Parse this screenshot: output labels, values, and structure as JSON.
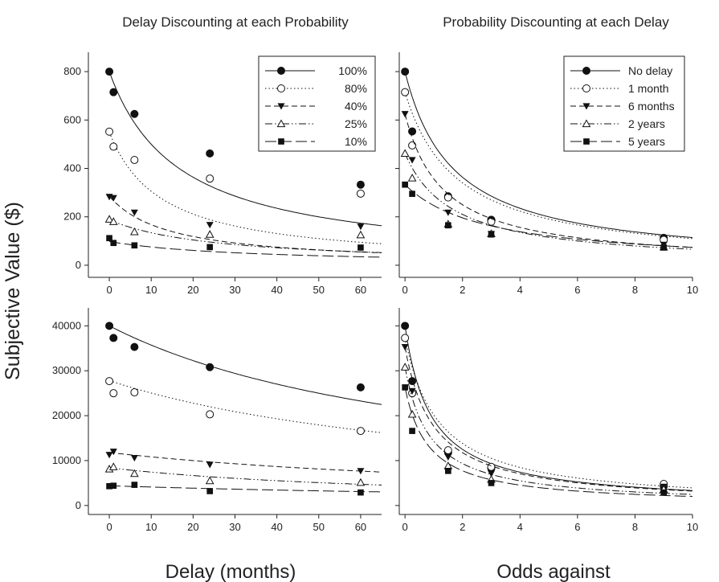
{
  "figure": {
    "left_title": "Delay Discounting at each Probability",
    "right_title": "Probability Discounting at each Delay",
    "ylabel": "Subjective Value ($)",
    "left_xlabel": "Delay (months)",
    "right_xlabel": "Odds against"
  },
  "chart_data": [
    {
      "type": "scatter",
      "panel": "top-left",
      "xlim": [
        -5,
        65
      ],
      "ylim": [
        -50,
        880
      ],
      "xticks": [
        "0",
        "10",
        "20",
        "30",
        "40",
        "50",
        "60"
      ],
      "yticks": [
        "0",
        "200",
        "400",
        "600",
        "800"
      ],
      "legend_position": "top-right",
      "series": [
        {
          "name": "100%",
          "marker": "filled-circle",
          "line": "solid",
          "x": [
            0,
            1,
            6,
            24,
            60
          ],
          "y": [
            800,
            715,
            625,
            462,
            333
          ],
          "fit": {
            "A": 800,
            "k": 0.06
          }
        },
        {
          "name": "80%",
          "marker": "open-circle",
          "line": "dotted",
          "x": [
            0,
            1,
            6,
            24,
            60
          ],
          "y": [
            552,
            490,
            435,
            358,
            296
          ],
          "fit": {
            "A": 550,
            "k": 0.08
          }
        },
        {
          "name": "40%",
          "marker": "filled-triangle-down",
          "line": "short-dash",
          "x": [
            0,
            1,
            6,
            24,
            60
          ],
          "y": [
            283,
            278,
            218,
            167,
            160
          ],
          "fit": {
            "A": 285,
            "k": 0.07
          }
        },
        {
          "name": "25%",
          "marker": "open-triangle-up",
          "line": "dash-dot-dot",
          "x": [
            0,
            1,
            6,
            24,
            60
          ],
          "y": [
            190,
            180,
            138,
            127,
            125
          ],
          "fit": {
            "A": 188,
            "k": 0.04
          }
        },
        {
          "name": "10%",
          "marker": "filled-square",
          "line": "long-dash",
          "x": [
            0,
            1,
            6,
            24,
            60
          ],
          "y": [
            112,
            92,
            82,
            75,
            73
          ],
          "fit": {
            "A": 98,
            "k": 0.03
          }
        }
      ]
    },
    {
      "type": "scatter",
      "panel": "top-right",
      "xlim": [
        -0.2,
        10
      ],
      "ylim": [
        -50,
        880
      ],
      "xticks": [
        "0",
        "2",
        "4",
        "6",
        "8",
        "10"
      ],
      "yticks": [
        "0",
        "200",
        "400",
        "600",
        "800"
      ],
      "legend_position": "top-right",
      "series": [
        {
          "name": "No delay",
          "marker": "filled-circle",
          "line": "solid",
          "x": [
            0,
            0.25,
            1.5,
            3,
            9
          ],
          "y": [
            800,
            553,
            285,
            188,
            113
          ],
          "fit": {
            "A": 800,
            "h": 0.6
          }
        },
        {
          "name": "1 month",
          "marker": "open-circle",
          "line": "dotted",
          "x": [
            0,
            0.25,
            1.5,
            3,
            9
          ],
          "y": [
            715,
            495,
            280,
            180,
            105
          ],
          "fit": {
            "A": 715,
            "h": 0.55
          }
        },
        {
          "name": "6 months",
          "marker": "filled-triangle-down",
          "line": "short-dash",
          "x": [
            0,
            0.25,
            1.5,
            3,
            9
          ],
          "y": [
            625,
            435,
            218,
            130,
            85
          ],
          "fit": {
            "A": 625,
            "h": 0.75
          }
        },
        {
          "name": "2 years",
          "marker": "open-triangle-up",
          "line": "dash-dot-dot",
          "x": [
            0,
            0.25,
            1.5,
            3,
            9
          ],
          "y": [
            462,
            360,
            170,
            130,
            75
          ],
          "fit": {
            "A": 462,
            "h": 0.6
          }
        },
        {
          "name": "5 years",
          "marker": "filled-square",
          "line": "long-dash",
          "x": [
            0,
            0.25,
            1.5,
            3,
            9
          ],
          "y": [
            333,
            295,
            165,
            127,
            73
          ],
          "fit": {
            "A": 333,
            "h": 0.35
          }
        }
      ]
    },
    {
      "type": "scatter",
      "panel": "bottom-left",
      "xlim": [
        -5,
        65
      ],
      "ylim": [
        -2000,
        44000
      ],
      "xticks": [
        "0",
        "10",
        "20",
        "30",
        "40",
        "50",
        "60"
      ],
      "yticks": [
        "0",
        "10000",
        "20000",
        "30000",
        "40000"
      ],
      "series": [
        {
          "name": "100%",
          "marker": "filled-circle",
          "line": "solid",
          "x": [
            0,
            1,
            6,
            24,
            60
          ],
          "y": [
            40000,
            37300,
            35300,
            30800,
            26300
          ],
          "fit": {
            "A": 40000,
            "k": 0.012
          }
        },
        {
          "name": "80%",
          "marker": "open-circle",
          "line": "dotted",
          "x": [
            0,
            1,
            6,
            24,
            60
          ],
          "y": [
            27700,
            25000,
            25200,
            20300,
            16600
          ],
          "fit": {
            "A": 27800,
            "k": 0.011
          }
        },
        {
          "name": "40%",
          "marker": "filled-triangle-down",
          "line": "short-dash",
          "x": [
            0,
            1,
            6,
            24,
            60
          ],
          "y": [
            11300,
            12000,
            10600,
            9100,
            7700
          ],
          "fit": {
            "A": 11800,
            "k": 0.009
          }
        },
        {
          "name": "25%",
          "marker": "open-triangle-up",
          "line": "dash-dot-dot",
          "x": [
            0,
            1,
            6,
            24,
            60
          ],
          "y": [
            8100,
            8600,
            7100,
            5500,
            5100
          ],
          "fit": {
            "A": 8400,
            "k": 0.013
          }
        },
        {
          "name": "10%",
          "marker": "filled-square",
          "line": "long-dash",
          "x": [
            0,
            1,
            6,
            24,
            60
          ],
          "y": [
            4300,
            4400,
            4600,
            3200,
            2900
          ],
          "fit": {
            "A": 4400,
            "k": 0.007
          }
        }
      ]
    },
    {
      "type": "scatter",
      "panel": "bottom-right",
      "xlim": [
        -0.2,
        10
      ],
      "ylim": [
        -2000,
        44000
      ],
      "xticks": [
        "0",
        "2",
        "4",
        "6",
        "8",
        "10"
      ],
      "yticks": [
        "0",
        "10000",
        "20000",
        "30000",
        "40000"
      ],
      "series": [
        {
          "name": "No delay",
          "marker": "filled-circle",
          "line": "solid",
          "x": [
            0,
            0.25,
            1.5,
            3,
            9
          ],
          "y": [
            40000,
            27700,
            11800,
            8300,
            4300
          ],
          "fit": {
            "A": 40000,
            "h": 1.1
          }
        },
        {
          "name": "1 month",
          "marker": "open-circle",
          "line": "dotted",
          "x": [
            0,
            0.25,
            1.5,
            3,
            9
          ],
          "y": [
            37300,
            25000,
            12300,
            8600,
            4800
          ],
          "fit": {
            "A": 37300,
            "h": 0.85
          }
        },
        {
          "name": "6 months",
          "marker": "filled-triangle-down",
          "line": "short-dash",
          "x": [
            0,
            0.25,
            1.5,
            3,
            9
          ],
          "y": [
            35300,
            25500,
            10800,
            7100,
            4200
          ],
          "fit": {
            "A": 35300,
            "h": 1.0
          }
        },
        {
          "name": "2 years",
          "marker": "open-triangle-up",
          "line": "dash-dot-dot",
          "x": [
            0,
            0.25,
            1.5,
            3,
            9
          ],
          "y": [
            30800,
            20300,
            8800,
            5800,
            3600
          ],
          "fit": {
            "A": 30800,
            "h": 1.15
          }
        },
        {
          "name": "5 years",
          "marker": "filled-square",
          "line": "long-dash",
          "x": [
            0,
            0.25,
            1.5,
            3,
            9
          ],
          "y": [
            26300,
            16600,
            7700,
            5000,
            2900
          ],
          "fit": {
            "A": 26300,
            "h": 1.2
          }
        }
      ]
    }
  ]
}
